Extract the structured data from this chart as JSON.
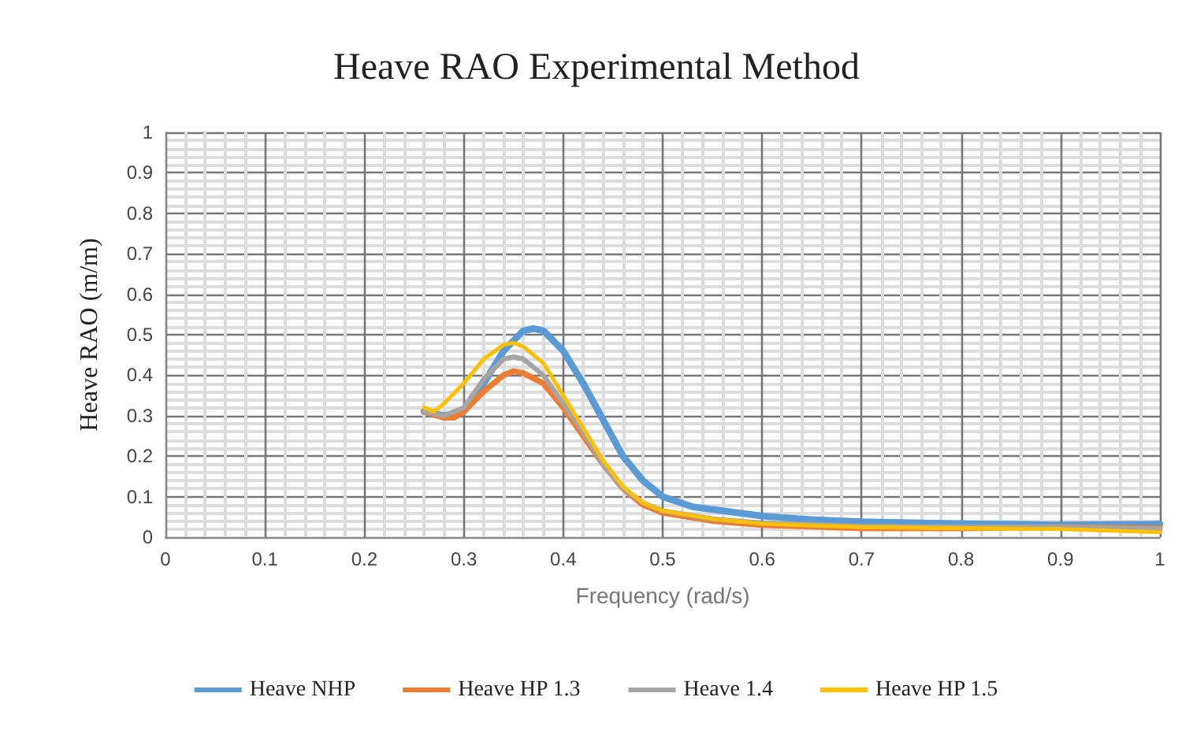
{
  "chart_data": {
    "type": "line",
    "title": "Heave RAO Experimental Method",
    "xlabel": "Frequency (rad/s)",
    "ylabel": "Heave RAO (m/m)",
    "xlim": [
      0,
      1
    ],
    "xticks": [
      0,
      0.1,
      0.2,
      0.3,
      0.4,
      0.5,
      0.6,
      0.7,
      0.8,
      0.9,
      1
    ],
    "ylim": [
      0,
      1
    ],
    "yticks": [
      0,
      0.1,
      0.2,
      0.3,
      0.4,
      0.5,
      0.6,
      0.7,
      0.8,
      0.9,
      1
    ],
    "grid": true,
    "legend": "bottom",
    "marker": "none",
    "line_style": "solid",
    "series": [
      {
        "name": "Heave NHP",
        "color": "#5b9bd5",
        "x": [
          0.26,
          0.28,
          0.3,
          0.32,
          0.34,
          0.36,
          0.37,
          0.38,
          0.4,
          0.42,
          0.44,
          0.46,
          0.48,
          0.5,
          0.53,
          0.56,
          0.6,
          0.65,
          0.7,
          0.8,
          0.9,
          1
        ],
        "values": [
          0.31,
          0.3,
          0.31,
          0.38,
          0.46,
          0.51,
          0.515,
          0.51,
          0.46,
          0.38,
          0.29,
          0.2,
          0.14,
          0.1,
          0.075,
          0.065,
          0.052,
          0.043,
          0.038,
          0.033,
          0.03,
          0.032
        ]
      },
      {
        "name": "Heave HP 1.3",
        "color": "#ed7d31",
        "x": [
          0.26,
          0.28,
          0.29,
          0.3,
          0.32,
          0.34,
          0.35,
          0.36,
          0.38,
          0.4,
          0.42,
          0.44,
          0.46,
          0.48,
          0.5,
          0.55,
          0.6,
          0.7,
          0.8,
          0.9,
          1
        ],
        "values": [
          0.31,
          0.295,
          0.295,
          0.31,
          0.36,
          0.4,
          0.41,
          0.405,
          0.38,
          0.32,
          0.25,
          0.18,
          0.12,
          0.08,
          0.06,
          0.04,
          0.03,
          0.022,
          0.022,
          0.025,
          0.022
        ]
      },
      {
        "name": "Heave 1.4",
        "color": "#a5a5a5",
        "x": [
          0.26,
          0.28,
          0.3,
          0.32,
          0.34,
          0.35,
          0.36,
          0.38,
          0.4,
          0.42,
          0.44,
          0.46,
          0.48,
          0.5,
          0.55,
          0.6,
          0.7,
          0.8,
          0.9,
          1
        ],
        "values": [
          0.31,
          0.3,
          0.32,
          0.39,
          0.44,
          0.445,
          0.44,
          0.4,
          0.33,
          0.26,
          0.18,
          0.12,
          0.085,
          0.065,
          0.045,
          0.035,
          0.027,
          0.025,
          0.025,
          0.02
        ]
      },
      {
        "name": "Heave HP 1.5",
        "color": "#ffc000",
        "x": [
          0.26,
          0.27,
          0.28,
          0.3,
          0.32,
          0.34,
          0.35,
          0.36,
          0.38,
          0.4,
          0.42,
          0.44,
          0.46,
          0.48,
          0.5,
          0.55,
          0.6,
          0.7,
          0.8,
          0.9,
          1
        ],
        "values": [
          0.32,
          0.31,
          0.33,
          0.38,
          0.44,
          0.475,
          0.48,
          0.47,
          0.43,
          0.35,
          0.27,
          0.19,
          0.125,
          0.085,
          0.065,
          0.045,
          0.033,
          0.025,
          0.022,
          0.02,
          0.012
        ]
      }
    ]
  }
}
